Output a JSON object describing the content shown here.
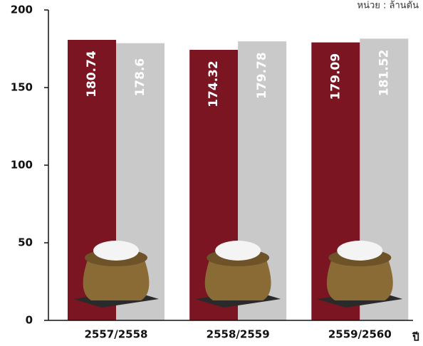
{
  "chart_data": {
    "type": "bar",
    "unit_note": "หน่วย : ล้านตัน",
    "x_label": "ปี",
    "categories": [
      "2557/2558",
      "2558/2559",
      "2559/2560"
    ],
    "series": [
      {
        "color": "#7b1522",
        "values": [
          180.74,
          174.32,
          179.09
        ]
      },
      {
        "color": "#c9c9c9",
        "values": [
          178.6,
          179.78,
          181.52
        ]
      }
    ],
    "ylim": [
      0,
      200
    ],
    "yticks": [
      0,
      50,
      100,
      150,
      200
    ]
  }
}
